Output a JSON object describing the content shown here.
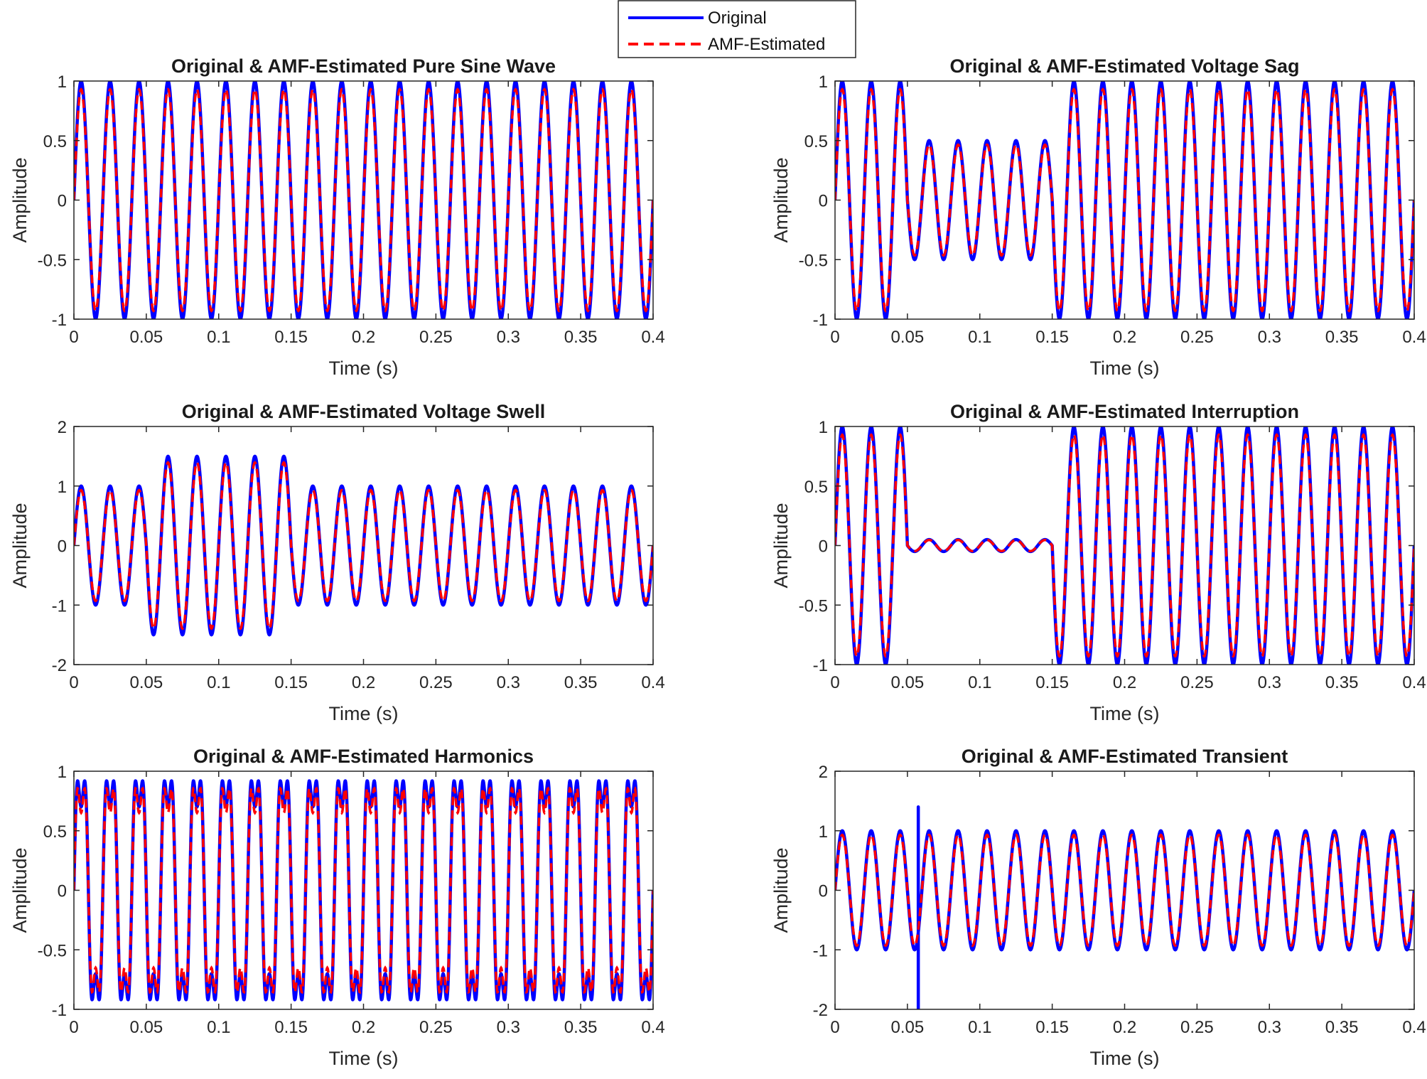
{
  "legend": {
    "entries": [
      {
        "label": "Original",
        "color": "#0000ff",
        "style": "solid"
      },
      {
        "label": "AMF-Estimated",
        "color": "#ff0000",
        "style": "dashed"
      }
    ],
    "placement": "top-center"
  },
  "chart_data": [
    {
      "type": "line",
      "title": "Original & AMF-Estimated Pure Sine Wave",
      "xlabel": "Time (s)",
      "ylabel": "Amplitude",
      "xlim": [
        0,
        0.4
      ],
      "ylim": [
        -1,
        1
      ],
      "xticks": [
        0,
        0.05,
        0.1,
        0.15,
        0.2,
        0.25,
        0.3,
        0.35,
        0.4
      ],
      "xtick_labels": [
        "0",
        "0.05",
        "0.1",
        "0.15",
        "0.2",
        "0.25",
        "0.3",
        "0.35",
        "0.4"
      ],
      "yticks": [
        -1,
        -0.5,
        0,
        0.5,
        1
      ],
      "ytick_labels": [
        "-1",
        "-0.5",
        "0",
        "0.5",
        "1"
      ],
      "frequency_hz": 50,
      "signal": {
        "kind": "sine",
        "amplitude": 1
      },
      "estimate_scale": 0.93,
      "series": [
        {
          "name": "Original"
        },
        {
          "name": "AMF-Estimated"
        }
      ]
    },
    {
      "type": "line",
      "title": "Original & AMF-Estimated Voltage Sag",
      "xlabel": "Time (s)",
      "ylabel": "Amplitude",
      "xlim": [
        0,
        0.4
      ],
      "ylim": [
        -1,
        1
      ],
      "xticks": [
        0,
        0.05,
        0.1,
        0.15,
        0.2,
        0.25,
        0.3,
        0.35,
        0.4
      ],
      "xtick_labels": [
        "0",
        "0.05",
        "0.1",
        "0.15",
        "0.2",
        "0.25",
        "0.3",
        "0.35",
        "0.4"
      ],
      "yticks": [
        -1,
        -0.5,
        0,
        0.5,
        1
      ],
      "ytick_labels": [
        "-1",
        "-0.5",
        "0",
        "0.5",
        "1"
      ],
      "frequency_hz": 50,
      "signal": {
        "kind": "sag",
        "amplitude": 1,
        "event_start": 0.05,
        "event_end": 0.15,
        "event_amplitude": 0.5
      },
      "estimate_scale": 0.93,
      "series": [
        {
          "name": "Original"
        },
        {
          "name": "AMF-Estimated"
        }
      ]
    },
    {
      "type": "line",
      "title": "Original & AMF-Estimated Voltage Swell",
      "xlabel": "Time (s)",
      "ylabel": "Amplitude",
      "xlim": [
        0,
        0.4
      ],
      "ylim": [
        -2,
        2
      ],
      "xticks": [
        0,
        0.05,
        0.1,
        0.15,
        0.2,
        0.25,
        0.3,
        0.35,
        0.4
      ],
      "xtick_labels": [
        "0",
        "0.05",
        "0.1",
        "0.15",
        "0.2",
        "0.25",
        "0.3",
        "0.35",
        "0.4"
      ],
      "yticks": [
        -2,
        -1,
        0,
        1,
        2
      ],
      "ytick_labels": [
        "-2",
        "-1",
        "0",
        "1",
        "2"
      ],
      "frequency_hz": 50,
      "signal": {
        "kind": "swell",
        "amplitude": 1,
        "event_start": 0.05,
        "event_end": 0.15,
        "event_amplitude": 1.5
      },
      "estimate_scale": 0.93,
      "series": [
        {
          "name": "Original"
        },
        {
          "name": "AMF-Estimated"
        }
      ]
    },
    {
      "type": "line",
      "title": "Original & AMF-Estimated Interruption",
      "xlabel": "Time (s)",
      "ylabel": "Amplitude",
      "xlim": [
        0,
        0.4
      ],
      "ylim": [
        -1,
        1
      ],
      "xticks": [
        0,
        0.05,
        0.1,
        0.15,
        0.2,
        0.25,
        0.3,
        0.35,
        0.4
      ],
      "xtick_labels": [
        "0",
        "0.05",
        "0.1",
        "0.15",
        "0.2",
        "0.25",
        "0.3",
        "0.35",
        "0.4"
      ],
      "yticks": [
        -1,
        -0.5,
        0,
        0.5,
        1
      ],
      "ytick_labels": [
        "-1",
        "-0.5",
        "0",
        "0.5",
        "1"
      ],
      "frequency_hz": 50,
      "signal": {
        "kind": "interruption",
        "amplitude": 1,
        "event_start": 0.05,
        "event_end": 0.15,
        "event_amplitude": 0.05
      },
      "estimate_scale": 0.93,
      "series": [
        {
          "name": "Original"
        },
        {
          "name": "AMF-Estimated"
        }
      ]
    },
    {
      "type": "line",
      "title": "Original & AMF-Estimated Harmonics",
      "xlabel": "Time (s)",
      "ylabel": "Amplitude",
      "xlim": [
        0,
        0.4
      ],
      "ylim": [
        -1,
        1
      ],
      "xticks": [
        0,
        0.05,
        0.1,
        0.15,
        0.2,
        0.25,
        0.3,
        0.35,
        0.4
      ],
      "xtick_labels": [
        "0",
        "0.05",
        "0.1",
        "0.15",
        "0.2",
        "0.25",
        "0.3",
        "0.35",
        "0.4"
      ],
      "yticks": [
        -1,
        -0.5,
        0,
        0.5,
        1
      ],
      "ytick_labels": [
        "-1",
        "-0.5",
        "0",
        "0.5",
        "1"
      ],
      "frequency_hz": 50,
      "signal": {
        "kind": "harmonics",
        "amplitude": 1,
        "harmonic_order": 3,
        "harmonic_amplitude": 0.3
      },
      "estimate_scale": 0.93,
      "series": [
        {
          "name": "Original"
        },
        {
          "name": "AMF-Estimated"
        }
      ]
    },
    {
      "type": "line",
      "title": "Original & AMF-Estimated Transient",
      "xlabel": "Time (s)",
      "ylabel": "Amplitude",
      "xlim": [
        0,
        0.4
      ],
      "ylim": [
        -2,
        2
      ],
      "xticks": [
        0,
        0.05,
        0.1,
        0.15,
        0.2,
        0.25,
        0.3,
        0.35,
        0.4
      ],
      "xtick_labels": [
        "0",
        "0.05",
        "0.1",
        "0.15",
        "0.2",
        "0.25",
        "0.3",
        "0.35",
        "0.4"
      ],
      "yticks": [
        -2,
        -1,
        0,
        1,
        2
      ],
      "ytick_labels": [
        "-2",
        "-1",
        "0",
        "1",
        "2"
      ],
      "frequency_hz": 50,
      "signal": {
        "kind": "transient",
        "amplitude": 1,
        "transient_time": 0.0575,
        "transient_peak": 1.4,
        "transient_trough": -2.0
      },
      "estimate_scale": 0.93,
      "series": [
        {
          "name": "Original"
        },
        {
          "name": "AMF-Estimated"
        }
      ]
    }
  ]
}
